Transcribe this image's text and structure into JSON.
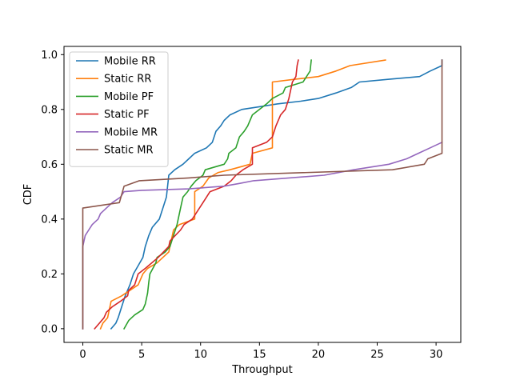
{
  "chart_data": {
    "type": "line",
    "title": "",
    "xlabel": "Throughput",
    "ylabel": "CDF",
    "xlim": [
      -1.6,
      32.1
    ],
    "ylim": [
      -0.05,
      1.03
    ],
    "xticks": [
      0,
      5,
      10,
      15,
      20,
      25,
      30
    ],
    "yticks": [
      0.0,
      0.2,
      0.4,
      0.6,
      0.8,
      1.0
    ],
    "xtick_labels": [
      "0",
      "5",
      "10",
      "15",
      "20",
      "25",
      "30"
    ],
    "ytick_labels": [
      "0.0",
      "0.2",
      "0.4",
      "0.6",
      "0.8",
      "1.0"
    ],
    "grid": false,
    "legend_position": "top-left",
    "series": [
      {
        "name": "Mobile RR",
        "color": "#1f77b4",
        "points": [
          [
            2.4,
            0.0
          ],
          [
            2.8,
            0.02
          ],
          [
            3.0,
            0.04
          ],
          [
            3.3,
            0.08
          ],
          [
            3.6,
            0.12
          ],
          [
            4.0,
            0.16
          ],
          [
            4.3,
            0.2
          ],
          [
            4.7,
            0.23
          ],
          [
            5.1,
            0.26
          ],
          [
            5.3,
            0.3
          ],
          [
            5.6,
            0.34
          ],
          [
            5.9,
            0.37
          ],
          [
            6.5,
            0.4
          ],
          [
            6.8,
            0.44
          ],
          [
            7.1,
            0.48
          ],
          [
            7.2,
            0.52
          ],
          [
            7.3,
            0.56
          ],
          [
            7.8,
            0.58
          ],
          [
            8.5,
            0.6
          ],
          [
            9.0,
            0.62
          ],
          [
            9.5,
            0.64
          ],
          [
            10.5,
            0.66
          ],
          [
            11.0,
            0.68
          ],
          [
            11.3,
            0.72
          ],
          [
            11.7,
            0.74
          ],
          [
            12.0,
            0.76
          ],
          [
            12.5,
            0.78
          ],
          [
            13.5,
            0.8
          ],
          [
            15.0,
            0.81
          ],
          [
            16.5,
            0.82
          ],
          [
            18.5,
            0.83
          ],
          [
            20.0,
            0.84
          ],
          [
            21.5,
            0.86
          ],
          [
            22.8,
            0.88
          ],
          [
            23.5,
            0.9
          ],
          [
            26.0,
            0.91
          ],
          [
            28.6,
            0.92
          ],
          [
            29.5,
            0.94
          ],
          [
            30.5,
            0.96
          ],
          [
            30.5,
            0.98
          ]
        ]
      },
      {
        "name": "Static RR",
        "color": "#ff7f0e",
        "points": [
          [
            1.5,
            0.0
          ],
          [
            1.7,
            0.02
          ],
          [
            2.1,
            0.04
          ],
          [
            2.3,
            0.08
          ],
          [
            2.4,
            0.1
          ],
          [
            3.3,
            0.12
          ],
          [
            4.0,
            0.14
          ],
          [
            4.7,
            0.16
          ],
          [
            5.1,
            0.2
          ],
          [
            5.5,
            0.22
          ],
          [
            6.3,
            0.24
          ],
          [
            7.3,
            0.28
          ],
          [
            7.5,
            0.32
          ],
          [
            7.7,
            0.36
          ],
          [
            8.2,
            0.38
          ],
          [
            9.5,
            0.4
          ],
          [
            9.5,
            0.5
          ],
          [
            10.2,
            0.52
          ],
          [
            10.7,
            0.55
          ],
          [
            11.5,
            0.57
          ],
          [
            12.5,
            0.58
          ],
          [
            14.2,
            0.6
          ],
          [
            14.4,
            0.64
          ],
          [
            16.1,
            0.66
          ],
          [
            16.1,
            0.9
          ],
          [
            18.0,
            0.91
          ],
          [
            20.0,
            0.92
          ],
          [
            21.5,
            0.94
          ],
          [
            22.7,
            0.96
          ],
          [
            25.7,
            0.98
          ]
        ]
      },
      {
        "name": "Mobile PF",
        "color": "#2ca02c",
        "points": [
          [
            3.5,
            0.0
          ],
          [
            3.9,
            0.03
          ],
          [
            4.4,
            0.05
          ],
          [
            5.1,
            0.07
          ],
          [
            5.3,
            0.09
          ],
          [
            5.5,
            0.13
          ],
          [
            5.6,
            0.17
          ],
          [
            5.7,
            0.2
          ],
          [
            6.2,
            0.24
          ],
          [
            6.3,
            0.26
          ],
          [
            7.0,
            0.28
          ],
          [
            7.4,
            0.3
          ],
          [
            7.7,
            0.34
          ],
          [
            8.0,
            0.38
          ],
          [
            8.3,
            0.44
          ],
          [
            8.5,
            0.48
          ],
          [
            8.9,
            0.5
          ],
          [
            9.2,
            0.52
          ],
          [
            9.6,
            0.54
          ],
          [
            10.2,
            0.56
          ],
          [
            10.4,
            0.58
          ],
          [
            12.0,
            0.6
          ],
          [
            12.3,
            0.62
          ],
          [
            12.4,
            0.64
          ],
          [
            13.0,
            0.66
          ],
          [
            13.3,
            0.7
          ],
          [
            13.7,
            0.72
          ],
          [
            14.0,
            0.74
          ],
          [
            14.4,
            0.78
          ],
          [
            15.0,
            0.8
          ],
          [
            15.6,
            0.82
          ],
          [
            16.1,
            0.84
          ],
          [
            17.0,
            0.86
          ],
          [
            17.2,
            0.88
          ],
          [
            18.7,
            0.9
          ],
          [
            19.3,
            0.94
          ],
          [
            19.4,
            0.98
          ]
        ]
      },
      {
        "name": "Static PF",
        "color": "#d62728",
        "points": [
          [
            1.0,
            0.0
          ],
          [
            1.4,
            0.02
          ],
          [
            1.8,
            0.04
          ],
          [
            2.0,
            0.06
          ],
          [
            2.5,
            0.08
          ],
          [
            3.2,
            0.1
          ],
          [
            3.8,
            0.12
          ],
          [
            3.9,
            0.14
          ],
          [
            4.4,
            0.16
          ],
          [
            4.7,
            0.2
          ],
          [
            5.3,
            0.22
          ],
          [
            6.4,
            0.26
          ],
          [
            7.3,
            0.3
          ],
          [
            7.4,
            0.32
          ],
          [
            8.3,
            0.36
          ],
          [
            8.6,
            0.38
          ],
          [
            9.3,
            0.4
          ],
          [
            10.2,
            0.46
          ],
          [
            10.8,
            0.5
          ],
          [
            12.0,
            0.52
          ],
          [
            12.6,
            0.54
          ],
          [
            13.0,
            0.56
          ],
          [
            13.6,
            0.58
          ],
          [
            14.4,
            0.6
          ],
          [
            14.4,
            0.66
          ],
          [
            15.6,
            0.68
          ],
          [
            16.1,
            0.7
          ],
          [
            16.4,
            0.74
          ],
          [
            16.8,
            0.78
          ],
          [
            17.2,
            0.8
          ],
          [
            17.5,
            0.84
          ],
          [
            17.8,
            0.9
          ],
          [
            18.1,
            0.92
          ],
          [
            18.2,
            0.96
          ],
          [
            18.3,
            0.98
          ]
        ]
      },
      {
        "name": "Mobile MR",
        "color": "#9467bd",
        "points": [
          [
            0.0,
            0.0
          ],
          [
            0.0,
            0.3
          ],
          [
            0.1,
            0.32
          ],
          [
            0.2,
            0.34
          ],
          [
            0.5,
            0.36
          ],
          [
            0.8,
            0.38
          ],
          [
            1.3,
            0.4
          ],
          [
            1.5,
            0.42
          ],
          [
            2.0,
            0.44
          ],
          [
            2.5,
            0.46
          ],
          [
            3.2,
            0.48
          ],
          [
            3.5,
            0.5
          ],
          [
            5.0,
            0.505
          ],
          [
            9.0,
            0.51
          ],
          [
            12.0,
            0.52
          ],
          [
            13.3,
            0.53
          ],
          [
            14.5,
            0.54
          ],
          [
            20.5,
            0.56
          ],
          [
            23.0,
            0.58
          ],
          [
            26.0,
            0.6
          ],
          [
            27.5,
            0.62
          ],
          [
            28.5,
            0.64
          ],
          [
            29.5,
            0.66
          ],
          [
            30.5,
            0.68
          ]
        ]
      },
      {
        "name": "Static MR",
        "color": "#8c564b",
        "points": [
          [
            0.0,
            0.0
          ],
          [
            0.0,
            0.44
          ],
          [
            3.1,
            0.46
          ],
          [
            3.5,
            0.52
          ],
          [
            4.8,
            0.54
          ],
          [
            9.0,
            0.55
          ],
          [
            12.0,
            0.56
          ],
          [
            26.3,
            0.58
          ],
          [
            29.0,
            0.6
          ],
          [
            29.3,
            0.62
          ],
          [
            30.5,
            0.64
          ],
          [
            30.5,
            0.98
          ]
        ]
      }
    ]
  }
}
